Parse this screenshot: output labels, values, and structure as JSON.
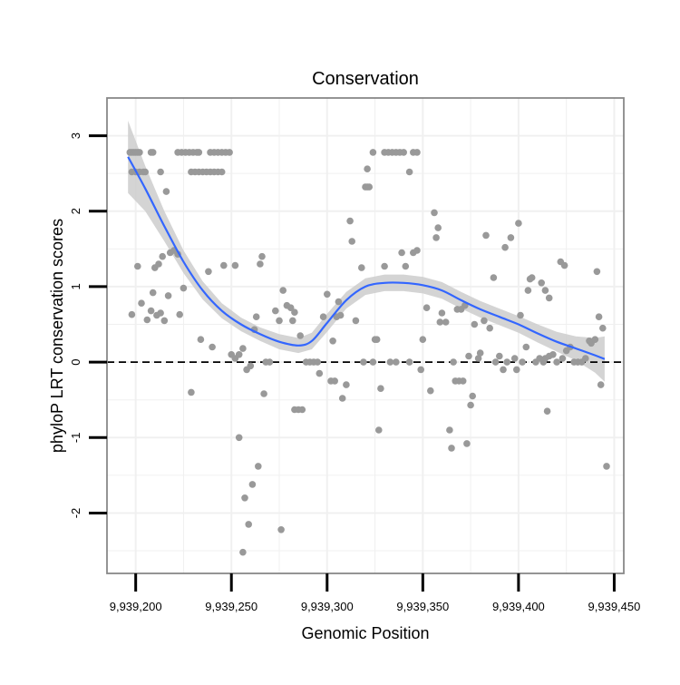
{
  "chart_data": {
    "type": "scatter",
    "title": "Conservation",
    "xlabel": "Genomic Position",
    "ylabel": "phyloP LRT conservation scores",
    "xlim": [
      9939185,
      9939455
    ],
    "ylim": [
      -2.8,
      3.5
    ],
    "grid": true,
    "x_ticks": [
      9939200,
      9939250,
      9939300,
      9939350,
      9939400,
      9939450
    ],
    "x_tick_labels": [
      "9,939,200",
      "9,939,250",
      "9,939,300",
      "9,939,350",
      "9,939,400",
      "9,939,450"
    ],
    "y_ticks": [
      -2,
      -1,
      0,
      1,
      2,
      3
    ],
    "y_tick_labels": [
      "-2",
      "-1",
      "0",
      "1",
      "2",
      "3"
    ],
    "reference_line": {
      "y": 0,
      "style": "dashed"
    },
    "colors": {
      "points": "#999999",
      "smooth_line": "#3366ff",
      "confidence_band": "#cccccc",
      "grid": "#f0f0f0",
      "panel_border": "#888888"
    },
    "points": [
      [
        9939197,
        2.78
      ],
      [
        9939198,
        2.78
      ],
      [
        9939199,
        2.78
      ],
      [
        9939200,
        2.78
      ],
      [
        9939201,
        2.78
      ],
      [
        9939202,
        2.78
      ],
      [
        9939198,
        2.52
      ],
      [
        9939200,
        2.52
      ],
      [
        9939202,
        2.52
      ],
      [
        9939204,
        2.52
      ],
      [
        9939205,
        2.52
      ],
      [
        9939208,
        2.78
      ],
      [
        9939209,
        2.78
      ],
      [
        9939213,
        2.52
      ],
      [
        9939222,
        2.78
      ],
      [
        9939224,
        2.78
      ],
      [
        9939226,
        2.78
      ],
      [
        9939228,
        2.78
      ],
      [
        9939230,
        2.78
      ],
      [
        9939232,
        2.78
      ],
      [
        9939233,
        2.78
      ],
      [
        9939229,
        2.52
      ],
      [
        9939231,
        2.52
      ],
      [
        9939233,
        2.52
      ],
      [
        9939235,
        2.52
      ],
      [
        9939237,
        2.52
      ],
      [
        9939239,
        2.52
      ],
      [
        9939241,
        2.52
      ],
      [
        9939243,
        2.52
      ],
      [
        9939245,
        2.52
      ],
      [
        9939239,
        2.78
      ],
      [
        9939241,
        2.78
      ],
      [
        9939243,
        2.78
      ],
      [
        9939245,
        2.78
      ],
      [
        9939247,
        2.78
      ],
      [
        9939249,
        2.78
      ],
      [
        9939216,
        2.26
      ],
      [
        9939220,
        1.48
      ],
      [
        9939218,
        1.45
      ],
      [
        9939214,
        1.4
      ],
      [
        9939212,
        1.3
      ],
      [
        9939210,
        1.25
      ],
      [
        9939201,
        1.27
      ],
      [
        9939209,
        0.92
      ],
      [
        9939217,
        0.88
      ],
      [
        9939222,
        1.43
      ],
      [
        9939225,
        0.98
      ],
      [
        9939203,
        0.78
      ],
      [
        9939208,
        0.68
      ],
      [
        9939198,
        0.63
      ],
      [
        9939211,
        0.62
      ],
      [
        9939206,
        0.56
      ],
      [
        9939213,
        0.65
      ],
      [
        9939215,
        0.55
      ],
      [
        9939223,
        0.63
      ],
      [
        9939238,
        1.2
      ],
      [
        9939246,
        1.28
      ],
      [
        9939252,
        1.28
      ],
      [
        9939234,
        0.3
      ],
      [
        9939240,
        0.2
      ],
      [
        9939229,
        -0.4
      ],
      [
        9939250,
        0.1
      ],
      [
        9939252,
        0.05
      ],
      [
        9939254,
        0.1
      ],
      [
        9939256,
        0.18
      ],
      [
        9939258,
        -0.1
      ],
      [
        9939262,
        0.43
      ],
      [
        9939263,
        0.6
      ],
      [
        9939266,
        1.4
      ],
      [
        9939265,
        1.3
      ],
      [
        9939267,
        -0.42
      ],
      [
        9939268,
        0.0
      ],
      [
        9939270,
        0.0
      ],
      [
        9939254,
        -1.0
      ],
      [
        9939257,
        -1.8
      ],
      [
        9939259,
        -2.15
      ],
      [
        9939261,
        -1.62
      ],
      [
        9939264,
        -1.38
      ],
      [
        9939256,
        -2.52
      ],
      [
        9939276,
        -2.22
      ],
      [
        9939260,
        -0.05
      ],
      [
        9939273,
        0.68
      ],
      [
        9939275,
        0.55
      ],
      [
        9939277,
        0.95
      ],
      [
        9939279,
        0.75
      ],
      [
        9939281,
        0.72
      ],
      [
        9939283,
        0.66
      ],
      [
        9939282,
        0.55
      ],
      [
        9939283,
        -0.63
      ],
      [
        9939285,
        -0.63
      ],
      [
        9939287,
        -0.63
      ],
      [
        9939286,
        0.35
      ],
      [
        9939289,
        0.0
      ],
      [
        9939291,
        0.0
      ],
      [
        9939293,
        0.0
      ],
      [
        9939295,
        0.0
      ],
      [
        9939296,
        -0.15
      ],
      [
        9939298,
        0.6
      ],
      [
        9939300,
        0.9
      ],
      [
        9939302,
        -0.25
      ],
      [
        9939304,
        -0.25
      ],
      [
        9939303,
        0.28
      ],
      [
        9939305,
        0.6
      ],
      [
        9939307,
        0.62
      ],
      [
        9939308,
        -0.48
      ],
      [
        9939306,
        0.8
      ],
      [
        9939310,
        -0.3
      ],
      [
        9939312,
        1.87
      ],
      [
        9939313,
        1.6
      ],
      [
        9939315,
        0.55
      ],
      [
        9939318,
        1.25
      ],
      [
        9939320,
        2.32
      ],
      [
        9939321,
        2.32
      ],
      [
        9939322,
        2.32
      ],
      [
        9939321,
        2.56
      ],
      [
        9939319,
        0.0
      ],
      [
        9939324,
        0.0
      ],
      [
        9939325,
        0.3
      ],
      [
        9939326,
        0.3
      ],
      [
        9939327,
        -0.9
      ],
      [
        9939328,
        -0.35
      ],
      [
        9939324,
        2.78
      ],
      [
        9939330,
        2.78
      ],
      [
        9939332,
        2.78
      ],
      [
        9939334,
        2.78
      ],
      [
        9939336,
        2.78
      ],
      [
        9939338,
        2.78
      ],
      [
        9939340,
        2.78
      ],
      [
        9939345,
        2.78
      ],
      [
        9939347,
        2.78
      ],
      [
        9939343,
        2.52
      ],
      [
        9939330,
        1.27
      ],
      [
        9939333,
        0.0
      ],
      [
        9939336,
        0.0
      ],
      [
        9939339,
        1.45
      ],
      [
        9939341,
        1.27
      ],
      [
        9939343,
        0.0
      ],
      [
        9939345,
        1.45
      ],
      [
        9939347,
        1.48
      ],
      [
        9939350,
        0.3
      ],
      [
        9939349,
        -0.1
      ],
      [
        9939352,
        0.72
      ],
      [
        9939354,
        -0.38
      ],
      [
        9939356,
        1.98
      ],
      [
        9939357,
        1.65
      ],
      [
        9939358,
        1.78
      ],
      [
        9939359,
        0.53
      ],
      [
        9939360,
        0.65
      ],
      [
        9939362,
        0.53
      ],
      [
        9939364,
        -0.9
      ],
      [
        9939365,
        -1.14
      ],
      [
        9939366,
        0.0
      ],
      [
        9939367,
        -0.25
      ],
      [
        9939368,
        0.7
      ],
      [
        9939369,
        -0.25
      ],
      [
        9939370,
        0.7
      ],
      [
        9939371,
        -0.25
      ],
      [
        9939372,
        0.75
      ],
      [
        9939373,
        -1.08
      ],
      [
        9939374,
        0.08
      ],
      [
        9939375,
        -0.57
      ],
      [
        9939376,
        -0.45
      ],
      [
        9939377,
        0.5
      ],
      [
        9939379,
        0.05
      ],
      [
        9939380,
        0.12
      ],
      [
        9939382,
        0.55
      ],
      [
        9939383,
        1.68
      ],
      [
        9939385,
        0.45
      ],
      [
        9939387,
        1.12
      ],
      [
        9939388,
        0.0
      ],
      [
        9939390,
        0.08
      ],
      [
        9939392,
        -0.1
      ],
      [
        9939393,
        1.52
      ],
      [
        9939394,
        0.0
      ],
      [
        9939396,
        1.65
      ],
      [
        9939398,
        0.05
      ],
      [
        9939399,
        -0.1
      ],
      [
        9939400,
        1.84
      ],
      [
        9939401,
        0.62
      ],
      [
        9939402,
        0.0
      ],
      [
        9939404,
        0.2
      ],
      [
        9939405,
        0.95
      ],
      [
        9939406,
        1.1
      ],
      [
        9939407,
        1.12
      ],
      [
        9939409,
        0.0
      ],
      [
        9939411,
        0.05
      ],
      [
        9939413,
        0.0
      ],
      [
        9939415,
        -0.65
      ],
      [
        9939414,
        0.05
      ],
      [
        9939416,
        0.08
      ],
      [
        9939418,
        0.1
      ],
      [
        9939412,
        1.05
      ],
      [
        9939414,
        0.95
      ],
      [
        9939416,
        0.85
      ],
      [
        9939420,
        0.0
      ],
      [
        9939422,
        1.33
      ],
      [
        9939423,
        0.05
      ],
      [
        9939424,
        1.28
      ],
      [
        9939425,
        0.15
      ],
      [
        9939427,
        0.2
      ],
      [
        9939429,
        0.0
      ],
      [
        9939431,
        0.0
      ],
      [
        9939433,
        0.0
      ],
      [
        9939435,
        0.05
      ],
      [
        9939437,
        0.28
      ],
      [
        9939438,
        0.25
      ],
      [
        9939440,
        0.3
      ],
      [
        9939441,
        1.2
      ],
      [
        9939443,
        -0.3
      ],
      [
        9939444,
        0.45
      ],
      [
        9939446,
        -1.38
      ],
      [
        9939442,
        0.6
      ]
    ],
    "smooth_line": [
      [
        9939196,
        2.72
      ],
      [
        9939205,
        2.3
      ],
      [
        9939215,
        1.8
      ],
      [
        9939225,
        1.33
      ],
      [
        9939235,
        0.95
      ],
      [
        9939245,
        0.68
      ],
      [
        9939255,
        0.5
      ],
      [
        9939265,
        0.37
      ],
      [
        9939275,
        0.27
      ],
      [
        9939285,
        0.22
      ],
      [
        9939292,
        0.28
      ],
      [
        9939300,
        0.52
      ],
      [
        9939310,
        0.82
      ],
      [
        9939320,
        1.0
      ],
      [
        9939330,
        1.05
      ],
      [
        9939340,
        1.05
      ],
      [
        9939350,
        1.02
      ],
      [
        9939360,
        0.95
      ],
      [
        9939370,
        0.82
      ],
      [
        9939380,
        0.7
      ],
      [
        9939390,
        0.6
      ],
      [
        9939400,
        0.5
      ],
      [
        9939410,
        0.38
      ],
      [
        9939420,
        0.27
      ],
      [
        9939430,
        0.18
      ],
      [
        9939440,
        0.09
      ],
      [
        9939445,
        0.04
      ]
    ],
    "confidence_upper": [
      [
        9939196,
        3.2
      ],
      [
        9939205,
        2.6
      ],
      [
        9939215,
        2.0
      ],
      [
        9939225,
        1.48
      ],
      [
        9939235,
        1.07
      ],
      [
        9939245,
        0.78
      ],
      [
        9939255,
        0.59
      ],
      [
        9939265,
        0.46
      ],
      [
        9939275,
        0.37
      ],
      [
        9939285,
        0.32
      ],
      [
        9939292,
        0.39
      ],
      [
        9939300,
        0.64
      ],
      [
        9939310,
        0.93
      ],
      [
        9939320,
        1.11
      ],
      [
        9939330,
        1.16
      ],
      [
        9939340,
        1.16
      ],
      [
        9939350,
        1.13
      ],
      [
        9939360,
        1.06
      ],
      [
        9939370,
        0.93
      ],
      [
        9939380,
        0.81
      ],
      [
        9939390,
        0.71
      ],
      [
        9939400,
        0.61
      ],
      [
        9939410,
        0.5
      ],
      [
        9939420,
        0.4
      ],
      [
        9939430,
        0.34
      ],
      [
        9939440,
        0.32
      ],
      [
        9939445,
        0.34
      ]
    ],
    "confidence_lower": [
      [
        9939196,
        2.24
      ],
      [
        9939205,
        2.0
      ],
      [
        9939215,
        1.6
      ],
      [
        9939225,
        1.18
      ],
      [
        9939235,
        0.83
      ],
      [
        9939245,
        0.58
      ],
      [
        9939255,
        0.41
      ],
      [
        9939265,
        0.28
      ],
      [
        9939275,
        0.17
      ],
      [
        9939285,
        0.12
      ],
      [
        9939292,
        0.17
      ],
      [
        9939300,
        0.4
      ],
      [
        9939310,
        0.71
      ],
      [
        9939320,
        0.89
      ],
      [
        9939330,
        0.94
      ],
      [
        9939340,
        0.94
      ],
      [
        9939350,
        0.91
      ],
      [
        9939360,
        0.84
      ],
      [
        9939370,
        0.71
      ],
      [
        9939380,
        0.59
      ],
      [
        9939390,
        0.49
      ],
      [
        9939400,
        0.39
      ],
      [
        9939410,
        0.26
      ],
      [
        9939420,
        0.14
      ],
      [
        9939430,
        0.02
      ],
      [
        9939440,
        -0.14
      ],
      [
        9939445,
        -0.26
      ]
    ]
  }
}
